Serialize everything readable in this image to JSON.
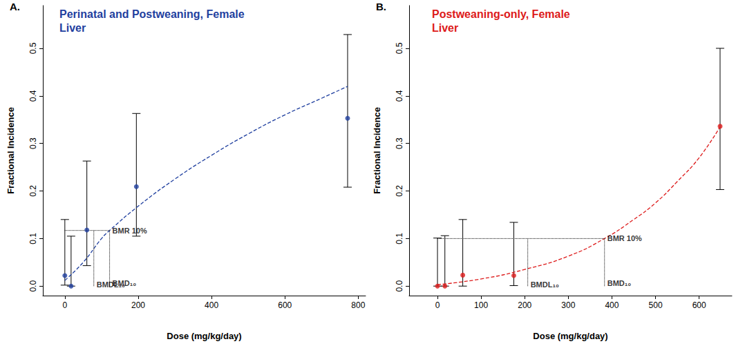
{
  "chart_data": [
    {
      "type": "scatter",
      "label": "A.",
      "title": "Perinatal and Postweaning, Female\nLiver",
      "color": "#1f3f9f",
      "marker": "circle",
      "x_label": "Dose (mg/kg/day)",
      "y_label": "Fractional Incidence",
      "xlim": [
        -60,
        820
      ],
      "xticks": [
        0,
        200,
        400,
        600,
        800
      ],
      "ylim": [
        -0.02,
        0.59
      ],
      "yticks": [
        {
          "value": 0,
          "label": "0.0"
        },
        0.1,
        0.2,
        0.3,
        0.4,
        0.5
      ],
      "grid": false,
      "x": [
        0,
        17,
        60,
        195,
        771
      ],
      "values": [
        0.022,
        0,
        0.118,
        0.209,
        0.353
      ],
      "error_low": [
        0.002,
        0,
        0.043,
        0.105,
        0.208
      ],
      "error_high": [
        0.14,
        0.105,
        0.263,
        0.363,
        0.529
      ],
      "fit": {
        "line_style": "dashed",
        "x": [
          0,
          50,
          100,
          122,
          200,
          300,
          400,
          500,
          600,
          700,
          771
        ],
        "values": [
          0.012,
          0.05,
          0.1,
          0.117,
          0.168,
          0.225,
          0.275,
          0.32,
          0.36,
          0.395,
          0.42
        ]
      },
      "bmr": {
        "value": 0.117,
        "label": "BMR 10%"
      },
      "bmdl": {
        "value": 79,
        "label": "BMDL₁₀"
      },
      "bmd": {
        "value": 122,
        "label": "BMD₁₀"
      }
    },
    {
      "type": "scatter",
      "label": "B.",
      "title": "Postweaning-only, Female\nLiver",
      "color": "#dd1a1a",
      "marker": "circle",
      "x_label": "Dose (mg/kg/day)",
      "y_label": "Fractional Incidence",
      "xlim": [
        -65,
        675
      ],
      "xticks": [
        0,
        100,
        200,
        300,
        400,
        500,
        600
      ],
      "ylim": [
        -0.02,
        0.59
      ],
      "yticks": [
        {
          "value": 0,
          "label": "0.0"
        },
        0.1,
        0.2,
        0.3,
        0.4,
        0.5
      ],
      "grid": false,
      "x": [
        0,
        17,
        58,
        175,
        648
      ],
      "values": [
        0,
        0,
        0.023,
        0.022,
        0.336
      ],
      "error_low": [
        0,
        0,
        0,
        0.001,
        0.203
      ],
      "error_high": [
        0.101,
        0.106,
        0.14,
        0.134,
        0.5
      ],
      "fit": {
        "line_style": "dashed",
        "x": [
          0,
          100,
          200,
          300,
          383,
          450,
          500,
          550,
          600,
          648
        ],
        "values": [
          0.003,
          0.015,
          0.035,
          0.063,
          0.1,
          0.14,
          0.175,
          0.22,
          0.27,
          0.335
        ]
      },
      "bmr": {
        "value": 0.1,
        "label": "BMR 10%"
      },
      "bmdl": {
        "value": 207,
        "label": "BMDL₁₀"
      },
      "bmd": {
        "value": 383,
        "label": "BMD₁₀"
      }
    }
  ]
}
